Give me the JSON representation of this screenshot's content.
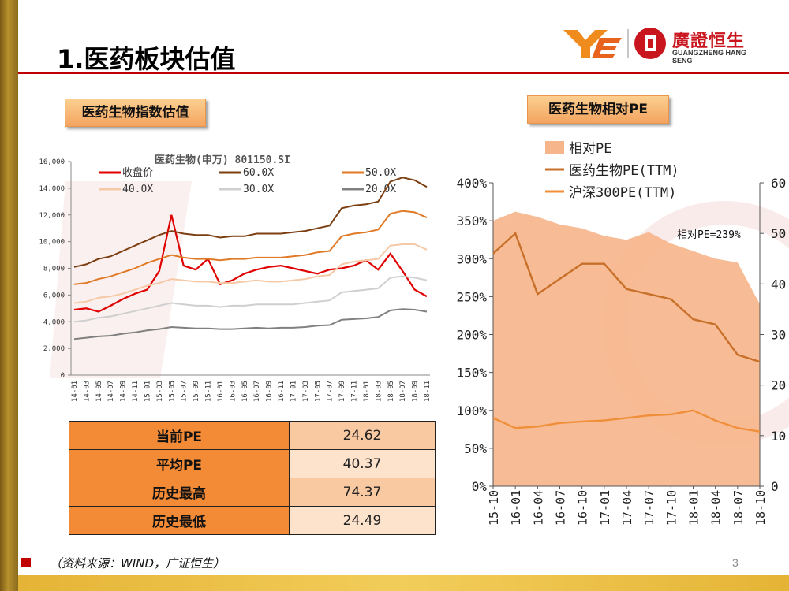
{
  "slide": {
    "title": "1.医药板块估值",
    "page_number": "3",
    "source_note": "（资料来源：WIND，广证恒生）",
    "logo_cn": "廣證恒生",
    "logo_en": "GUANGZHENG HANG SENG",
    "accent_color": "#c00000",
    "gold_color": "#e5b436"
  },
  "section_left": {
    "heading": "医药生物指数估值"
  },
  "section_right": {
    "heading": "医药生物相对PE"
  },
  "pe_table": {
    "rows": [
      {
        "label": "当前PE",
        "value": "24.62"
      },
      {
        "label": "平均PE",
        "value": "40.37"
      },
      {
        "label": "历史最高",
        "value": "74.37"
      },
      {
        "label": "历史最低",
        "value": "24.49"
      }
    ]
  },
  "chart_data": [
    {
      "type": "line",
      "title": "医药生物(申万) 801150.SI",
      "ylim": [
        0,
        16000
      ],
      "y_ticks": [
        "0",
        "2,000",
        "4,000",
        "6,000",
        "8,000",
        "10,000",
        "12,000",
        "14,000",
        "16,000"
      ],
      "x_ticks": [
        "14-01",
        "14-03",
        "14-05",
        "14-07",
        "14-09",
        "14-11",
        "15-01",
        "15-03",
        "15-05",
        "15-07",
        "15-09",
        "15-11",
        "16-01",
        "16-03",
        "16-05",
        "16-07",
        "16-09",
        "16-11",
        "17-01",
        "17-03",
        "17-05",
        "17-07",
        "17-09",
        "17-11",
        "18-01",
        "18-03",
        "18-05",
        "18-07",
        "18-09",
        "18-11"
      ],
      "legend_placement": "top",
      "series": [
        {
          "name": "收盘价",
          "color": "#e00000",
          "values": [
            4900,
            5000,
            4750,
            5200,
            5700,
            6100,
            6400,
            7800,
            12000,
            8200,
            7900,
            8700,
            6800,
            7100,
            7600,
            7900,
            8100,
            8200,
            8000,
            7800,
            7600,
            7900,
            8000,
            8200,
            8600,
            7900,
            9100,
            7800,
            6400,
            5900
          ]
        },
        {
          "name": "60.0X",
          "color": "#7b3f12",
          "values": [
            8100,
            8300,
            8700,
            8900,
            9300,
            9700,
            10100,
            10500,
            10800,
            10600,
            10500,
            10500,
            10300,
            10400,
            10400,
            10600,
            10600,
            10600,
            10700,
            10800,
            11000,
            11200,
            12500,
            12700,
            12800,
            13000,
            14500,
            14800,
            14600,
            14100
          ]
        },
        {
          "name": "50.0X",
          "color": "#e07a26",
          "values": [
            6800,
            6900,
            7200,
            7400,
            7700,
            8000,
            8400,
            8700,
            9000,
            8800,
            8700,
            8700,
            8600,
            8700,
            8700,
            8800,
            8800,
            8800,
            8900,
            9000,
            9200,
            9300,
            10400,
            10600,
            10700,
            10900,
            12100,
            12300,
            12200,
            11800
          ]
        },
        {
          "name": "40.0X",
          "color": "#f6c9a6",
          "values": [
            5400,
            5500,
            5800,
            5900,
            6100,
            6400,
            6700,
            6900,
            7200,
            7100,
            7000,
            7000,
            6900,
            6900,
            7000,
            7100,
            7000,
            7000,
            7100,
            7200,
            7400,
            7500,
            8300,
            8500,
            8600,
            8700,
            9700,
            9800,
            9800,
            9400
          ]
        },
        {
          "name": "30.0X",
          "color": "#cfcfcf",
          "values": [
            4000,
            4100,
            4300,
            4400,
            4600,
            4800,
            5000,
            5200,
            5400,
            5300,
            5200,
            5200,
            5100,
            5200,
            5200,
            5300,
            5300,
            5300,
            5300,
            5400,
            5500,
            5600,
            6200,
            6300,
            6400,
            6500,
            7300,
            7400,
            7300,
            7100
          ]
        },
        {
          "name": "20.0X",
          "color": "#808080",
          "values": [
            2700,
            2800,
            2900,
            2950,
            3100,
            3200,
            3350,
            3450,
            3600,
            3550,
            3500,
            3500,
            3450,
            3450,
            3500,
            3550,
            3500,
            3550,
            3550,
            3600,
            3700,
            3750,
            4150,
            4200,
            4250,
            4350,
            4850,
            4950,
            4900,
            4750
          ]
        }
      ]
    },
    {
      "type": "line",
      "title": "",
      "x_ticks": [
        "15-10",
        "16-01",
        "16-04",
        "16-07",
        "16-10",
        "17-01",
        "17-04",
        "17-07",
        "17-10",
        "18-01",
        "18-04",
        "18-07",
        "18-10"
      ],
      "y_left_ticks": [
        "0%",
        "50%",
        "100%",
        "150%",
        "200%",
        "250%",
        "300%",
        "350%",
        "400%"
      ],
      "y_left_lim": [
        0,
        400
      ],
      "y_right_ticks": [
        "0",
        "10",
        "20",
        "30",
        "40",
        "50",
        "60"
      ],
      "y_right_lim": [
        0,
        60
      ],
      "annotation": "相对PE=239%",
      "legend_placement": "top",
      "series": [
        {
          "name": "相对PE",
          "axis": "left",
          "style": "area",
          "color": "#f6b58a",
          "values": [
            350,
            362,
            355,
            345,
            340,
            330,
            325,
            335,
            320,
            310,
            300,
            295,
            240
          ]
        },
        {
          "name": "医药生物PE(TTM)",
          "axis": "right",
          "color": "#c8702a",
          "values": [
            46,
            50,
            38,
            41,
            44,
            44,
            39,
            38,
            37,
            33,
            32,
            26,
            24.6
          ]
        },
        {
          "name": "沪深300PE(TTM)",
          "axis": "right",
          "color": "#f08f3a",
          "values": [
            13.5,
            11.5,
            11.8,
            12.5,
            12.8,
            13,
            13.5,
            14,
            14.2,
            15,
            13,
            11.5,
            10.8
          ]
        }
      ]
    }
  ]
}
